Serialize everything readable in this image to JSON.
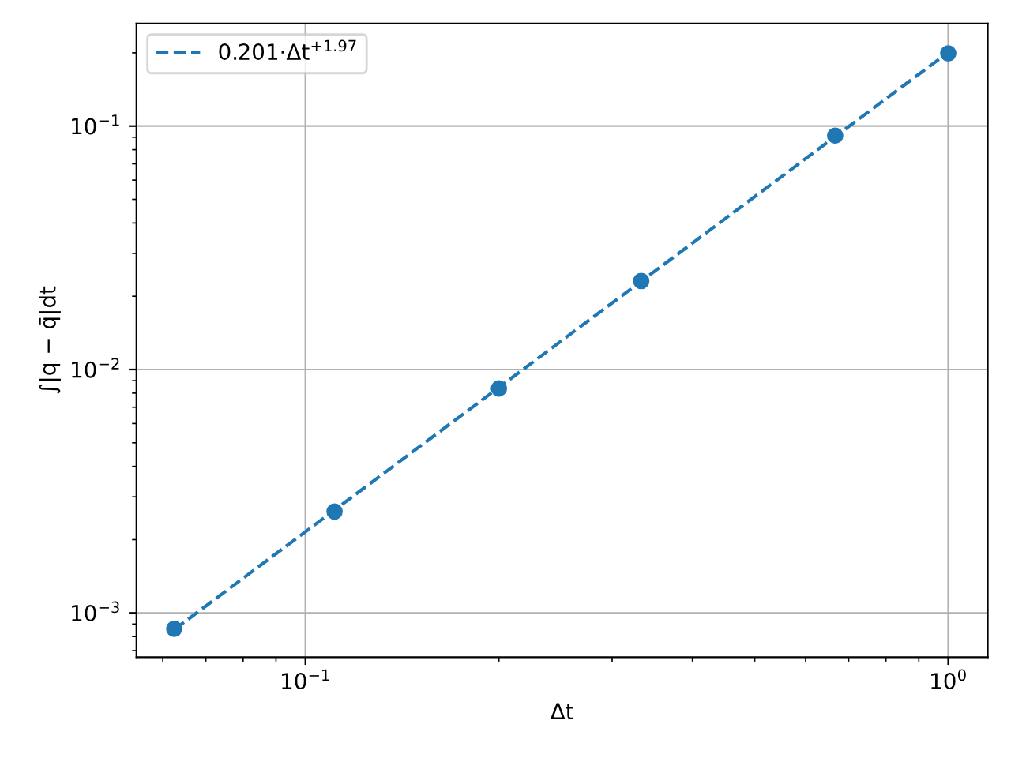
{
  "chart_data": {
    "type": "scatter",
    "xlabel": "Δt",
    "ylabel": "∫|q − q̄|dt",
    "log": "xy",
    "grid": true,
    "legend": "top left",
    "xlim": [
      0.0546,
      1.152
    ],
    "ylim": [
      0.000658,
      0.264
    ],
    "xticks": [
      {
        "value": 0.1,
        "label": "10$^{−1}$"
      },
      {
        "value": 1,
        "label": "10$^{0}$"
      }
    ],
    "yticks": [
      {
        "value": 0.001,
        "label": "10$^{−3}$"
      },
      {
        "value": 0.01,
        "label": "10$^{−2}$"
      },
      {
        "value": 0.1,
        "label": "10$^{−1}$"
      }
    ],
    "series": [
      {
        "color": "#1f77b4",
        "marker": "circle",
        "x": [
          0.0625,
          0.111,
          0.2,
          0.333,
          0.667,
          1.0
        ],
        "values": [
          0.000861,
          0.00261,
          0.00836,
          0.0231,
          0.0914,
          0.199
        ]
      },
      {
        "type": "line",
        "name": "0.201·Δt$^{+1.97}$",
        "color": "#1f77b4",
        "line_style": "dashed",
        "marker": "none",
        "x": [
          0.0625,
          1.0
        ],
        "values": [
          0.000854,
          0.201
        ]
      }
    ]
  }
}
